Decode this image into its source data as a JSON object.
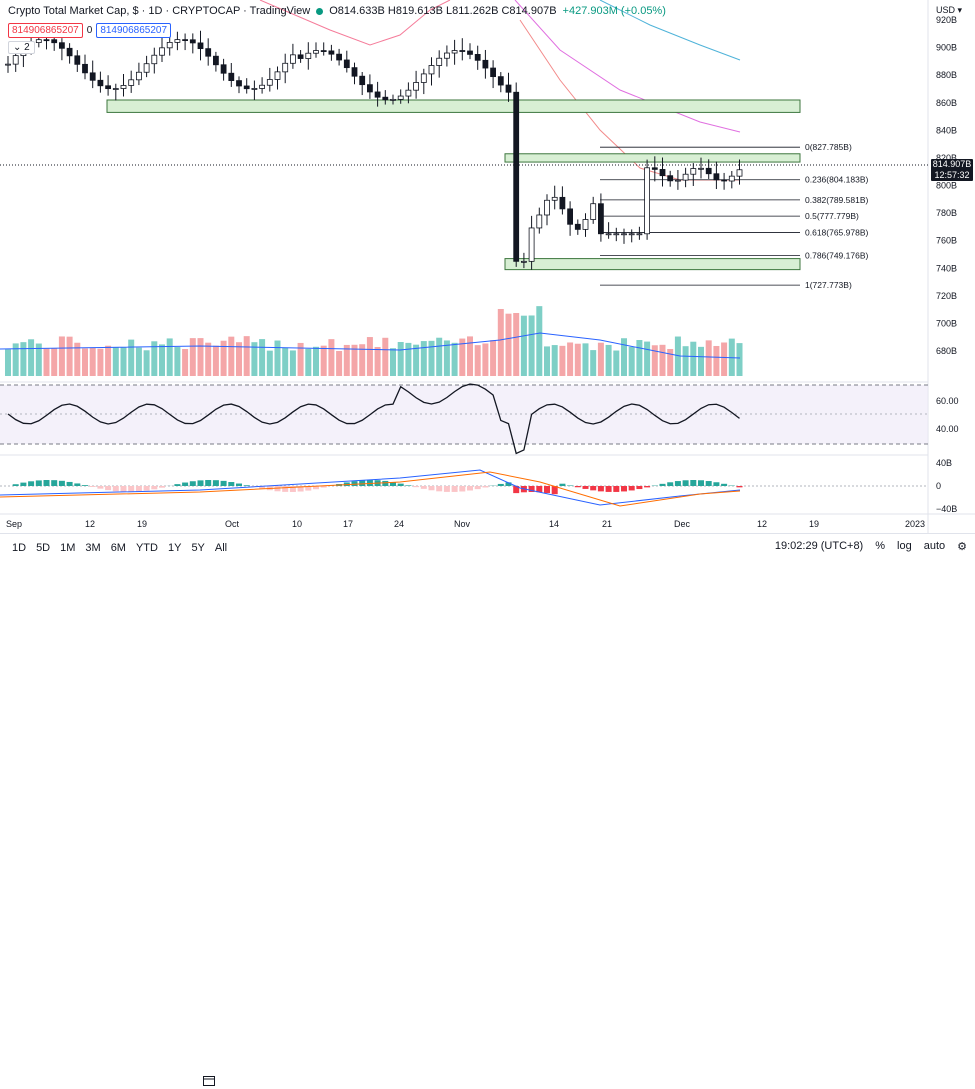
{
  "header": {
    "title": "Crypto Total Market Cap, $ · 1D · CRYPTOCAP · TradingView",
    "ohlc": "O814.633B H819.613B L811.262B C814.907B",
    "change": "+427.903M (+0.05%)",
    "box_left": "814906865207",
    "box_zero": "0",
    "box_right": "814906865207",
    "collapse_count": "2"
  },
  "axis": {
    "currency": "USD",
    "price_ticks": [
      "920B",
      "900B",
      "880B",
      "860B",
      "840B",
      "820B",
      "800B",
      "780B",
      "760B",
      "740B",
      "720B",
      "700B",
      "680B"
    ],
    "last_price": "814.907B",
    "countdown": "12:57:32",
    "rsi_ticks": [
      "60.00",
      "40.00"
    ],
    "macd_ticks": [
      "40B",
      "0",
      "−40B"
    ],
    "x_ticks": [
      "Sep",
      "12",
      "19",
      "Oct",
      "10",
      "17",
      "24",
      "Nov",
      "14",
      "21",
      "Dec",
      "12",
      "19",
      "2023"
    ]
  },
  "fib_levels": [
    {
      "label": "0(827.785B)",
      "price": 827.785
    },
    {
      "label": "0.236(804.183B)",
      "price": 804.183
    },
    {
      "label": "0.382(789.581B)",
      "price": 789.581
    },
    {
      "label": "0.5(777.779B)",
      "price": 777.779
    },
    {
      "label": "0.618(765.978B)",
      "price": 765.978
    },
    {
      "label": "0.786(749.176B)",
      "price": 749.176
    },
    {
      "label": "1(727.773B)",
      "price": 727.773
    }
  ],
  "zones": [
    {
      "low": 853,
      "high": 862
    },
    {
      "low": 817,
      "high": 823
    },
    {
      "low": 739,
      "high": 747
    }
  ],
  "colors": {
    "up": "#089981",
    "down": "#f23645",
    "volUp": "#7ecfc6",
    "volDown": "#f4a6a8",
    "zone": "#d8efd4",
    "zoneBorder": "#3c763d"
  },
  "toolbar": {
    "timeframes": [
      "1D",
      "5D",
      "1M",
      "3M",
      "6M",
      "YTD",
      "1Y",
      "5Y",
      "All"
    ],
    "clock": "19:02:29 (UTC+8)",
    "percent": "%",
    "log": "log",
    "auto": "auto"
  }
}
